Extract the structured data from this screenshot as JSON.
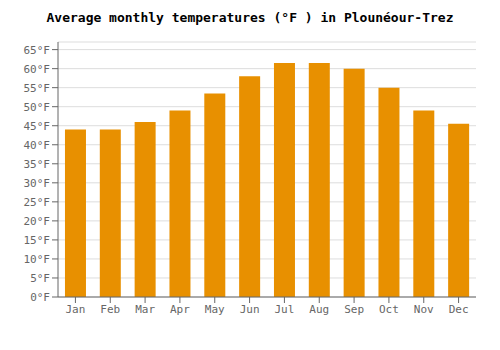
{
  "chart_data": {
    "type": "bar",
    "title": "Average monthly temperatures (°F ) in Plounéour-Trez",
    "categories": [
      "Jan",
      "Feb",
      "Mar",
      "Apr",
      "May",
      "Jun",
      "Jul",
      "Aug",
      "Sep",
      "Oct",
      "Nov",
      "Dec"
    ],
    "values": [
      44,
      44,
      46,
      49,
      53.5,
      58,
      61.5,
      61.5,
      60,
      55,
      49,
      45.5
    ],
    "color": "#E89000",
    "ylim": [
      0,
      67
    ],
    "yticks": [
      {
        "value": 0,
        "label": "0°F"
      },
      {
        "value": 5,
        "label": "5°F"
      },
      {
        "value": 10,
        "label": "10°F"
      },
      {
        "value": 15,
        "label": "15°F"
      },
      {
        "value": 20,
        "label": "20°F"
      },
      {
        "value": 25,
        "label": "25°F"
      },
      {
        "value": 30,
        "label": "30°F"
      },
      {
        "value": 35,
        "label": "35°F"
      },
      {
        "value": 40,
        "label": "40°F"
      },
      {
        "value": 45,
        "label": "45°F"
      },
      {
        "value": 50,
        "label": "50°F"
      },
      {
        "value": 55,
        "label": "55°F"
      },
      {
        "value": 60,
        "label": "60°F"
      },
      {
        "value": 65,
        "label": "65°F"
      }
    ],
    "grid": true
  }
}
